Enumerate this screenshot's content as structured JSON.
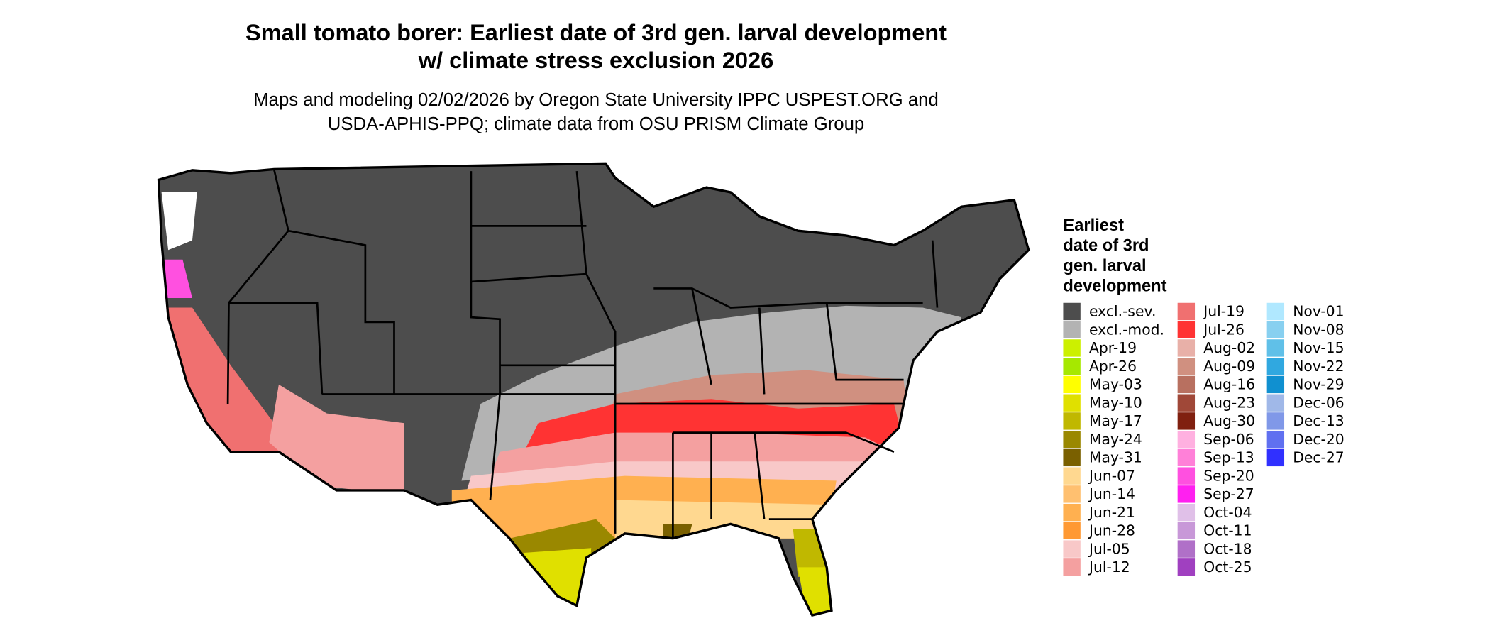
{
  "header": {
    "title": [
      "Small tomato borer: Earliest date of 3rd gen. larval development",
      "w/ climate stress exclusion 2026"
    ],
    "subtitle": [
      "Maps and modeling 02/02/2026 by Oregon State University IPPC USPEST.ORG and",
      "USDA-APHIS-PPQ; climate data from OSU PRISM Climate Group"
    ]
  },
  "legend": {
    "title": [
      "Earliest",
      "date of 3rd",
      "gen. larval",
      "development"
    ],
    "items": [
      {
        "label": "excl.-sev.",
        "color": "#4d4d4d"
      },
      {
        "label": "excl.-mod.",
        "color": "#b3b3b3"
      },
      {
        "label": "Apr-19",
        "color": "#ccf000"
      },
      {
        "label": "Apr-26",
        "color": "#a6e800"
      },
      {
        "label": "May-03",
        "color": "#ffff00"
      },
      {
        "label": "May-10",
        "color": "#e0e000"
      },
      {
        "label": "May-17",
        "color": "#c0b800"
      },
      {
        "label": "May-24",
        "color": "#9a8800"
      },
      {
        "label": "May-31",
        "color": "#7a6000"
      },
      {
        "label": "Jun-07",
        "color": "#ffd890"
      },
      {
        "label": "Jun-14",
        "color": "#ffc070"
      },
      {
        "label": "Jun-21",
        "color": "#ffb050"
      },
      {
        "label": "Jun-28",
        "color": "#ff9933"
      },
      {
        "label": "Jul-05",
        "color": "#f8c8c8"
      },
      {
        "label": "Jul-12",
        "color": "#f4a0a0"
      },
      {
        "label": "Jul-19",
        "color": "#f07070"
      },
      {
        "label": "Jul-26",
        "color": "#ff3333"
      },
      {
        "label": "Aug-02",
        "color": "#e8b0a8"
      },
      {
        "label": "Aug-09",
        "color": "#d09080"
      },
      {
        "label": "Aug-16",
        "color": "#b87060"
      },
      {
        "label": "Aug-23",
        "color": "#a04838"
      },
      {
        "label": "Aug-30",
        "color": "#802010"
      },
      {
        "label": "Sep-06",
        "color": "#ffb0e0"
      },
      {
        "label": "Sep-13",
        "color": "#ff80d8"
      },
      {
        "label": "Sep-20",
        "color": "#ff50e0"
      },
      {
        "label": "Sep-27",
        "color": "#ff20f0"
      },
      {
        "label": "Oct-04",
        "color": "#e0c0e8"
      },
      {
        "label": "Oct-11",
        "color": "#c898d8"
      },
      {
        "label": "Oct-18",
        "color": "#b070c8"
      },
      {
        "label": "Oct-25",
        "color": "#a040c0"
      },
      {
        "label": "Nov-01",
        "color": "#b0e8ff"
      },
      {
        "label": "Nov-08",
        "color": "#88d0f0"
      },
      {
        "label": "Nov-15",
        "color": "#60c0e8"
      },
      {
        "label": "Nov-22",
        "color": "#30a8e0"
      },
      {
        "label": "Nov-29",
        "color": "#1090d0"
      },
      {
        "label": "Dec-06",
        "color": "#a0b8e8"
      },
      {
        "label": "Dec-13",
        "color": "#8098e8"
      },
      {
        "label": "Dec-20",
        "color": "#6070f0"
      },
      {
        "label": "Dec-27",
        "color": "#3030ff"
      }
    ]
  }
}
